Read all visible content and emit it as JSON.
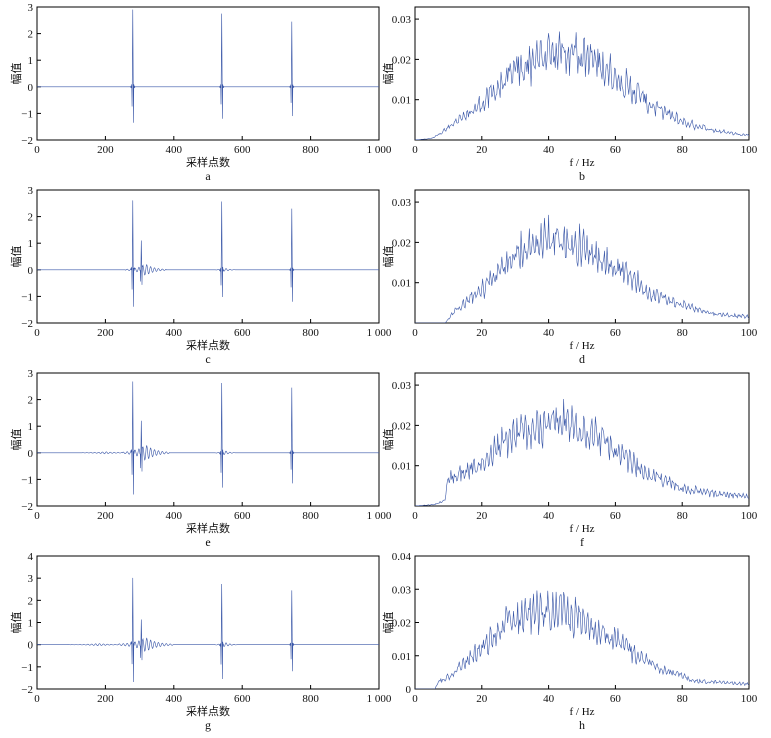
{
  "figure": {
    "colors": {
      "series": "#3a57a8",
      "axis": "#000000"
    }
  },
  "chart_data": [
    {
      "panel": "a",
      "type": "line",
      "caption": "a",
      "xlabel": "采样点数",
      "ylabel": "幅值",
      "xlim": [
        0,
        1000
      ],
      "ylim": [
        -2,
        3
      ],
      "xticks": [
        "0",
        "200",
        "400",
        "600",
        "800",
        "1 000"
      ],
      "yticks": [
        "−2",
        "−1",
        "0",
        "1",
        "2",
        "3"
      ],
      "grid": false,
      "spikes": [
        {
          "x": 280,
          "peak": 2.9,
          "trough": -1.35
        },
        {
          "x": 540,
          "peak": 2.75,
          "trough": -1.2
        },
        {
          "x": 745,
          "peak": 2.45,
          "trough": -1.1
        }
      ],
      "ringing": []
    },
    {
      "panel": "b",
      "type": "line",
      "caption": "b",
      "xlabel": "f / Hz",
      "ylabel": "幅值",
      "xlim": [
        0,
        100
      ],
      "ylim": [
        0,
        0.033
      ],
      "xticks": [
        "0",
        "20",
        "40",
        "60",
        "80",
        "100"
      ],
      "yticks": [
        "0.01",
        "0.02",
        "0.03"
      ],
      "grid": false,
      "envelope": [
        [
          0,
          0
        ],
        [
          5,
          0.0005
        ],
        [
          10,
          0.004
        ],
        [
          20,
          0.012
        ],
        [
          30,
          0.022
        ],
        [
          40,
          0.029
        ],
        [
          45,
          0.03
        ],
        [
          50,
          0.028
        ],
        [
          60,
          0.021
        ],
        [
          70,
          0.012
        ],
        [
          80,
          0.006
        ],
        [
          90,
          0.003
        ],
        [
          100,
          0.0015
        ]
      ]
    },
    {
      "panel": "c",
      "type": "line",
      "caption": "c",
      "xlabel": "采样点数",
      "ylabel": "幅值",
      "xlim": [
        0,
        1000
      ],
      "ylim": [
        -2,
        3
      ],
      "xticks": [
        "0",
        "200",
        "400",
        "600",
        "800",
        "1 000"
      ],
      "yticks": [
        "−2",
        "−1",
        "0",
        "1",
        "2",
        "3"
      ],
      "grid": false,
      "spikes": [
        {
          "x": 280,
          "peak": 2.65,
          "trough": -1.35
        },
        {
          "x": 305,
          "peak": 1.2,
          "trough": -0.6
        },
        {
          "x": 540,
          "peak": 2.55,
          "trough": -1.05
        },
        {
          "x": 745,
          "peak": 2.3,
          "trough": -1.2
        }
      ],
      "ringing": [
        {
          "x": 318,
          "amp": 0.22,
          "len": 60
        },
        {
          "x": 550,
          "amp": 0.06,
          "len": 30
        }
      ]
    },
    {
      "panel": "d",
      "type": "line",
      "caption": "d",
      "xlabel": "f / Hz",
      "ylabel": "幅值",
      "xlim": [
        0,
        100
      ],
      "ylim": [
        0,
        0.033
      ],
      "xticks": [
        "0",
        "20",
        "40",
        "60",
        "80",
        "100"
      ],
      "yticks": [
        "0.01",
        "0.02",
        "0.03"
      ],
      "grid": false,
      "envelope": [
        [
          0,
          0
        ],
        [
          9,
          0
        ],
        [
          12,
          0.004
        ],
        [
          20,
          0.011
        ],
        [
          30,
          0.022
        ],
        [
          38,
          0.028
        ],
        [
          45,
          0.027
        ],
        [
          55,
          0.022
        ],
        [
          63,
          0.017
        ],
        [
          70,
          0.01
        ],
        [
          80,
          0.006
        ],
        [
          90,
          0.003
        ],
        [
          100,
          0.002
        ]
      ]
    },
    {
      "panel": "e",
      "type": "line",
      "caption": "e",
      "xlabel": "采样点数",
      "ylabel": "幅值",
      "xlim": [
        0,
        1000
      ],
      "ylim": [
        -2,
        3
      ],
      "xticks": [
        "0",
        "200",
        "400",
        "600",
        "800",
        "1 000"
      ],
      "yticks": [
        "−2",
        "−1",
        "0",
        "1",
        "2",
        "3"
      ],
      "grid": false,
      "spikes": [
        {
          "x": 280,
          "peak": 2.75,
          "trough": -1.5
        },
        {
          "x": 305,
          "peak": 1.35,
          "trough": -0.75
        },
        {
          "x": 540,
          "peak": 2.6,
          "trough": -1.35
        },
        {
          "x": 745,
          "peak": 2.45,
          "trough": -1.15
        }
      ],
      "ringing": [
        {
          "x": 318,
          "amp": 0.3,
          "len": 70
        },
        {
          "x": 200,
          "amp": 0.04,
          "len": 70
        },
        {
          "x": 550,
          "amp": 0.08,
          "len": 30
        }
      ]
    },
    {
      "panel": "f",
      "type": "line",
      "caption": "f",
      "xlabel": "f / Hz",
      "ylabel": "幅值",
      "xlim": [
        0,
        100
      ],
      "ylim": [
        0,
        0.033
      ],
      "xticks": [
        "0",
        "20",
        "40",
        "60",
        "80",
        "100"
      ],
      "yticks": [
        "0.01",
        "0.02",
        "0.03"
      ],
      "grid": false,
      "envelope": [
        [
          0,
          0
        ],
        [
          6,
          0.0005
        ],
        [
          9,
          0.002
        ],
        [
          10,
          0.009
        ],
        [
          20,
          0.014
        ],
        [
          28,
          0.022
        ],
        [
          35,
          0.026
        ],
        [
          45,
          0.027
        ],
        [
          52,
          0.025
        ],
        [
          60,
          0.018
        ],
        [
          70,
          0.01
        ],
        [
          80,
          0.006
        ],
        [
          90,
          0.004
        ],
        [
          100,
          0.003
        ]
      ]
    },
    {
      "panel": "g",
      "type": "line",
      "caption": "g",
      "xlabel": "采样点数",
      "ylabel": "幅值",
      "xlim": [
        0,
        1000
      ],
      "ylim": [
        -2,
        4
      ],
      "xticks": [
        "0",
        "200",
        "400",
        "600",
        "800",
        "1 000"
      ],
      "yticks": [
        "−2",
        "−1",
        "0",
        "1",
        "2",
        "3",
        "4"
      ],
      "grid": false,
      "spikes": [
        {
          "x": 280,
          "peak": 3.1,
          "trough": -1.6
        },
        {
          "x": 305,
          "peak": 1.3,
          "trough": -0.75
        },
        {
          "x": 540,
          "peak": 2.7,
          "trough": -1.6
        },
        {
          "x": 745,
          "peak": 2.45,
          "trough": -1.2
        }
      ],
      "ringing": [
        {
          "x": 318,
          "amp": 0.32,
          "len": 80
        },
        {
          "x": 180,
          "amp": 0.05,
          "len": 90
        },
        {
          "x": 550,
          "amp": 0.1,
          "len": 35
        }
      ]
    },
    {
      "panel": "h",
      "type": "line",
      "caption": "h",
      "xlabel": "f / Hz",
      "ylabel": "幅值",
      "xlim": [
        0,
        100
      ],
      "ylim": [
        0,
        0.04
      ],
      "xticks": [
        "0",
        "20",
        "40",
        "60",
        "80",
        "100"
      ],
      "yticks": [
        "0",
        "0.01",
        "0.02",
        "0.03",
        "0.04"
      ],
      "grid": false,
      "envelope": [
        [
          0,
          0
        ],
        [
          6,
          0
        ],
        [
          7,
          0.003
        ],
        [
          10,
          0.005
        ],
        [
          20,
          0.016
        ],
        [
          28,
          0.027
        ],
        [
          35,
          0.031
        ],
        [
          45,
          0.03
        ],
        [
          55,
          0.024
        ],
        [
          65,
          0.015
        ],
        [
          75,
          0.007
        ],
        [
          85,
          0.003
        ],
        [
          100,
          0.002
        ]
      ]
    }
  ]
}
